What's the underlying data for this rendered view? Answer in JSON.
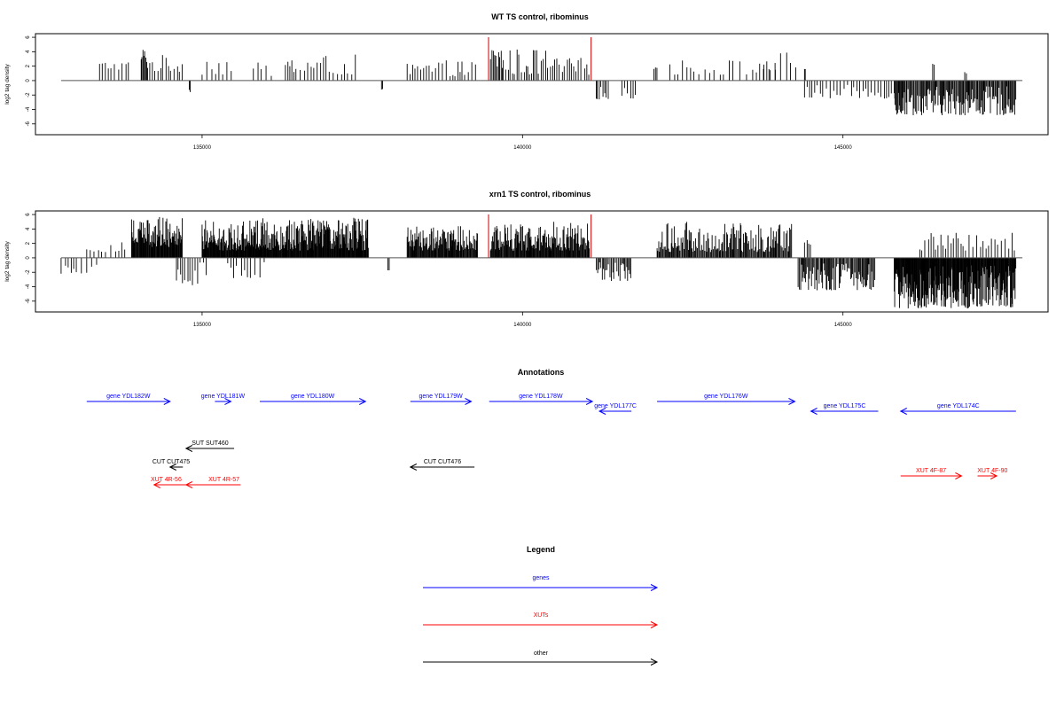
{
  "colors": {
    "gene": "#0000ff",
    "xut": "#ff0000",
    "other": "#000000",
    "marker": "#cc0000",
    "bar": "#000000"
  },
  "chart_data": [
    {
      "type": "bar",
      "title": "WT TS control, ribominus",
      "ylabel": "log2 tag density",
      "xlabel": "",
      "xlim": [
        132400,
        148200
      ],
      "ylim": [
        -7.5,
        6.5
      ],
      "xticks": [
        135000,
        140000,
        145000
      ],
      "yticks": [
        -6,
        -4,
        -2,
        0,
        2,
        4,
        6
      ],
      "marker_lines": [
        139470,
        141070
      ],
      "baseline_range": [
        132800,
        147800
      ],
      "grid": false,
      "segments": [
        {
          "from": 133400,
          "to": 133900,
          "lo": 1.5,
          "hi": 2.8,
          "step": 55
        },
        {
          "from": 134050,
          "to": 134150,
          "lo": 2.5,
          "hi": 4.6,
          "step": 15
        },
        {
          "from": 134150,
          "to": 134700,
          "lo": 1.2,
          "hi": 3.6,
          "step": 40
        },
        {
          "from": 134800,
          "to": 134830,
          "lo": -1.6,
          "hi": -1.0,
          "step": 20
        },
        {
          "from": 135000,
          "to": 135500,
          "lo": 0.8,
          "hi": 3.8,
          "step": 60
        },
        {
          "from": 135800,
          "to": 136100,
          "lo": 0.6,
          "hi": 2.5,
          "step": 70
        },
        {
          "from": 136300,
          "to": 137400,
          "lo": 0.8,
          "hi": 3.6,
          "step": 50
        },
        {
          "from": 137800,
          "to": 137830,
          "lo": -1.7,
          "hi": -1.0,
          "step": 20
        },
        {
          "from": 138200,
          "to": 138500,
          "lo": 0.6,
          "hi": 2.6,
          "step": 50
        },
        {
          "from": 138500,
          "to": 139300,
          "lo": 0.6,
          "hi": 2.8,
          "step": 45
        },
        {
          "from": 139500,
          "to": 139700,
          "lo": 1.5,
          "hi": 5.2,
          "step": 20
        },
        {
          "from": 139700,
          "to": 140500,
          "lo": 0.8,
          "hi": 4.5,
          "step": 35
        },
        {
          "from": 140500,
          "to": 141050,
          "lo": 0.8,
          "hi": 3.2,
          "step": 45
        },
        {
          "from": 141150,
          "to": 141350,
          "lo": -2.6,
          "hi": -0.7,
          "step": 25
        },
        {
          "from": 141550,
          "to": 141800,
          "lo": -2.5,
          "hi": -1.0,
          "step": 40
        },
        {
          "from": 142050,
          "to": 142100,
          "lo": 1.6,
          "hi": 2.0,
          "step": 25
        },
        {
          "from": 142300,
          "to": 144000,
          "lo": 0.8,
          "hi": 3.0,
          "step": 80
        },
        {
          "from": 143700,
          "to": 144300,
          "lo": 1.5,
          "hi": 4.0,
          "step": 70
        },
        {
          "from": 144400,
          "to": 144420,
          "lo": 1.6,
          "hi": 1.6,
          "step": 10
        },
        {
          "from": 144400,
          "to": 145900,
          "lo": -2.5,
          "hi": -0.6,
          "step": 45
        },
        {
          "from": 145800,
          "to": 147700,
          "lo": -4.8,
          "hi": -0.8,
          "step": 14
        },
        {
          "from": 146400,
          "to": 146440,
          "lo": 2.2,
          "hi": 2.4,
          "step": 20
        },
        {
          "from": 146900,
          "to": 146930,
          "lo": 1.0,
          "hi": 1.2,
          "step": 20
        }
      ]
    },
    {
      "type": "bar",
      "title": "xrn1 TS control, ribominus",
      "ylabel": "log2 tag density",
      "xlabel": "",
      "xlim": [
        132400,
        148200
      ],
      "ylim": [
        -7.5,
        6.5
      ],
      "xticks": [
        135000,
        140000,
        145000
      ],
      "yticks": [
        -6,
        -4,
        -2,
        0,
        2,
        4,
        6
      ],
      "marker_lines": [
        139470,
        141070
      ],
      "baseline_range": [
        132800,
        147800
      ],
      "grid": false,
      "segments": [
        {
          "from": 132800,
          "to": 133400,
          "lo": -2.2,
          "hi": -0.6,
          "step": 60
        },
        {
          "from": 133200,
          "to": 133800,
          "lo": 0.8,
          "hi": 2.8,
          "step": 60
        },
        {
          "from": 133900,
          "to": 134700,
          "lo": 1.5,
          "hi": 5.8,
          "step": 9
        },
        {
          "from": 134600,
          "to": 135100,
          "lo": -3.8,
          "hi": -0.6,
          "step": 40
        },
        {
          "from": 135000,
          "to": 135800,
          "lo": 1.0,
          "hi": 5.2,
          "step": 8
        },
        {
          "from": 135400,
          "to": 136000,
          "lo": -2.8,
          "hi": -0.6,
          "step": 60
        },
        {
          "from": 135800,
          "to": 137600,
          "lo": 1.0,
          "hi": 5.6,
          "step": 8
        },
        {
          "from": 137900,
          "to": 137930,
          "lo": -2.2,
          "hi": -1.2,
          "step": 20
        },
        {
          "from": 138200,
          "to": 139300,
          "lo": 1.0,
          "hi": 4.5,
          "step": 10
        },
        {
          "from": 139500,
          "to": 141050,
          "lo": 1.0,
          "hi": 5.0,
          "step": 10
        },
        {
          "from": 141150,
          "to": 141700,
          "lo": -3.2,
          "hi": -0.6,
          "step": 20
        },
        {
          "from": 142100,
          "to": 144200,
          "lo": 0.8,
          "hi": 5.0,
          "step": 14
        },
        {
          "from": 144300,
          "to": 145500,
          "lo": -4.5,
          "hi": -0.6,
          "step": 15
        },
        {
          "from": 144400,
          "to": 144500,
          "lo": 1.8,
          "hi": 3.2,
          "step": 30
        },
        {
          "from": 145800,
          "to": 147700,
          "lo": -7.0,
          "hi": -1.0,
          "step": 8
        },
        {
          "from": 146200,
          "to": 147700,
          "lo": 1.0,
          "hi": 3.5,
          "step": 45
        }
      ]
    }
  ],
  "annotations": {
    "title": "Annotations",
    "features": [
      {
        "label": "gene YDL182W",
        "kind": "gene",
        "start": 133200,
        "end": 134500
      },
      {
        "label": "gene YDL181W",
        "kind": "gene",
        "start": 135200,
        "end": 135450
      },
      {
        "label": "gene YDL180W",
        "kind": "gene",
        "start": 135900,
        "end": 137550
      },
      {
        "label": "gene YDL179W",
        "kind": "gene",
        "start": 138250,
        "end": 139200
      },
      {
        "label": "gene YDL178W",
        "kind": "gene",
        "start": 139480,
        "end": 141090
      },
      {
        "label": "gene YDL177C",
        "kind": "gene",
        "start": 141700,
        "end": 141200
      },
      {
        "label": "gene YDL176W",
        "kind": "gene",
        "start": 142100,
        "end": 144250
      },
      {
        "label": "gene YDL175C",
        "kind": "gene",
        "start": 145550,
        "end": 144500
      },
      {
        "label": "gene YDL174C",
        "kind": "gene",
        "start": 147700,
        "end": 145900
      },
      {
        "label": "SUT SUT460",
        "kind": "other",
        "start": 135500,
        "end": 134750
      },
      {
        "label": "CUT CUT475",
        "kind": "other",
        "start": 134700,
        "end": 134500
      },
      {
        "label": "CUT CUT476",
        "kind": "other",
        "start": 139250,
        "end": 138250
      },
      {
        "label": "XUT 4R-56",
        "kind": "xut",
        "start": 134850,
        "end": 134250
      },
      {
        "label": "XUT 4R-57",
        "kind": "xut",
        "start": 135600,
        "end": 134750
      },
      {
        "label": "XUT 4F-87",
        "kind": "xut",
        "start": 145900,
        "end": 146850
      },
      {
        "label": "XUT 4F-90",
        "kind": "xut",
        "start": 147100,
        "end": 147400
      }
    ]
  },
  "legend": {
    "title": "Legend",
    "items": [
      {
        "label": "genes",
        "kind": "gene"
      },
      {
        "label": "XUTs",
        "kind": "xut"
      },
      {
        "label": "other",
        "kind": "other"
      }
    ]
  }
}
